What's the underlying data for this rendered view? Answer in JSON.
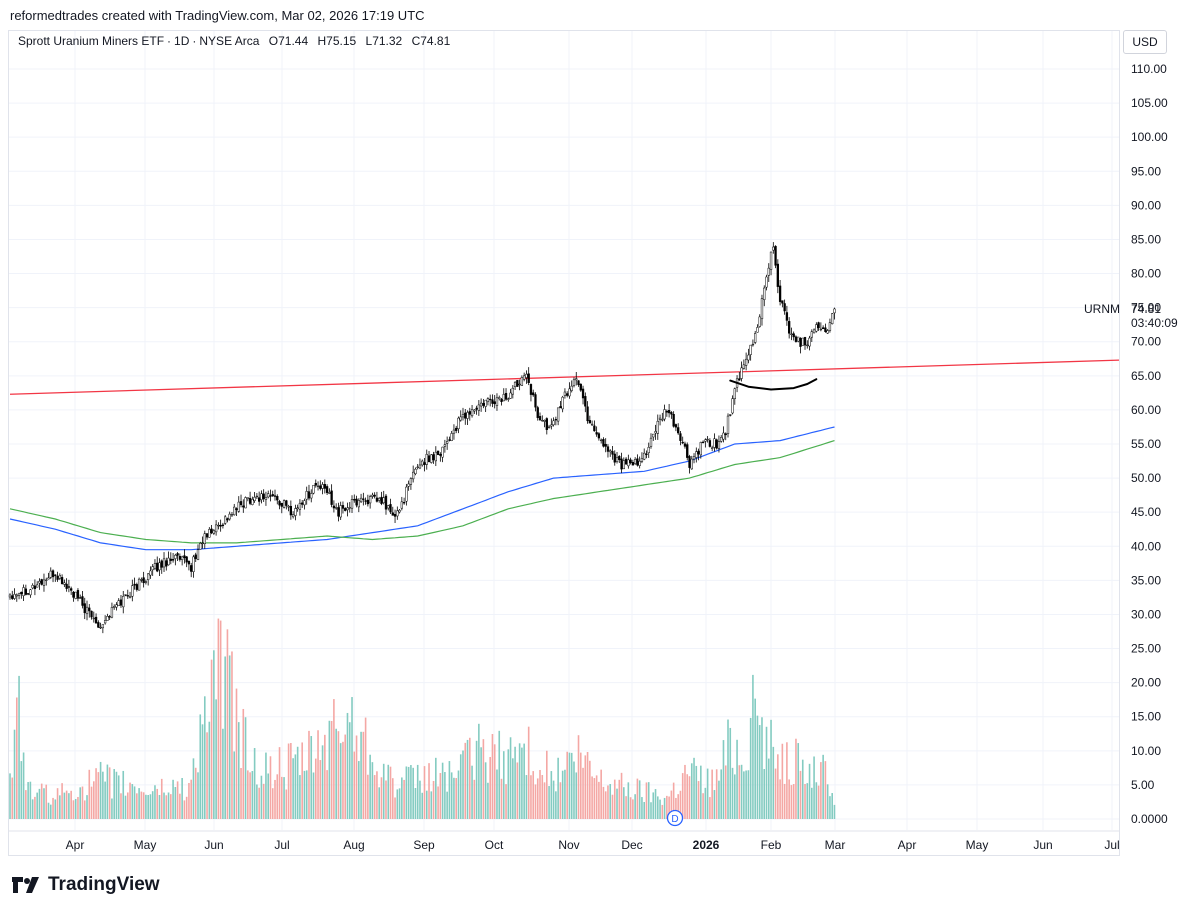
{
  "header": {
    "text": "reformedtrades created with TradingView.com, Mar 02, 2026 17:19 UTC"
  },
  "legend": {
    "name": "Sprott Uranium Miners ETF",
    "interval": "1D",
    "exchange": "NYSE Arca",
    "open": "O71.44",
    "high": "H75.15",
    "low": "L71.32",
    "close": "C74.81"
  },
  "currency_button": "USD",
  "last_price": {
    "ticker": "URNM",
    "price": "74.81",
    "countdown": "03:40:09"
  },
  "footer": {
    "brand": "TradingView"
  },
  "volume_marker": "D",
  "colors": {
    "up_candle": "#ffffff",
    "down_candle": "#000000",
    "vol_up": "#83cbc1",
    "vol_down": "#f4a7a4",
    "ma_blue": "#2962ff",
    "ma_green": "#4caf50",
    "trendline": "#f23645",
    "drawing": "#000000",
    "grid": "#f0f3fa"
  },
  "chart_data": {
    "type": "candlestick",
    "price_axis": {
      "ticks": [
        "110.00",
        "105.00",
        "100.00",
        "95.00",
        "90.00",
        "85.00",
        "80.00",
        "75.00",
        "70.00",
        "65.00",
        "60.00",
        "55.00",
        "50.00",
        "45.00",
        "40.00",
        "35.00",
        "30.00",
        "25.00",
        "20.00",
        "15.00",
        "10.00",
        "5.00",
        "0.0000"
      ],
      "price_range": [
        30,
        110
      ]
    },
    "time_axis": {
      "labels": [
        "Apr",
        "May",
        "Jun",
        "Jul",
        "Aug",
        "Sep",
        "Oct",
        "Nov",
        "Dec",
        "2026",
        "Feb",
        "Mar",
        "Apr",
        "May",
        "Jun",
        "Jul"
      ]
    },
    "close_series_anchors": [
      [
        0,
        33
      ],
      [
        10,
        34
      ],
      [
        20,
        36
      ],
      [
        28,
        33
      ],
      [
        35,
        30
      ],
      [
        40,
        28.5
      ],
      [
        46,
        31
      ],
      [
        55,
        34
      ],
      [
        65,
        37
      ],
      [
        72,
        38.5
      ],
      [
        80,
        37
      ],
      [
        85,
        41
      ],
      [
        95,
        44
      ],
      [
        105,
        47
      ],
      [
        115,
        47.5
      ],
      [
        125,
        45
      ],
      [
        135,
        49
      ],
      [
        140,
        48
      ],
      [
        145,
        45
      ],
      [
        155,
        47
      ],
      [
        165,
        46.5
      ],
      [
        170,
        44
      ],
      [
        180,
        52
      ],
      [
        190,
        54
      ],
      [
        200,
        59
      ],
      [
        210,
        61
      ],
      [
        220,
        62
      ],
      [
        228,
        66
      ],
      [
        232,
        60
      ],
      [
        238,
        57
      ],
      [
        245,
        62
      ],
      [
        250,
        65
      ],
      [
        255,
        59
      ],
      [
        262,
        55
      ],
      [
        270,
        52
      ],
      [
        278,
        52
      ],
      [
        285,
        57
      ],
      [
        290,
        60
      ],
      [
        296,
        56
      ],
      [
        300,
        52
      ],
      [
        306,
        55
      ],
      [
        312,
        55
      ],
      [
        316,
        57
      ],
      [
        320,
        63
      ],
      [
        325,
        67
      ],
      [
        330,
        72
      ],
      [
        334,
        80
      ],
      [
        337,
        84
      ],
      [
        340,
        76
      ],
      [
        344,
        72
      ],
      [
        348,
        70
      ],
      [
        352,
        70
      ],
      [
        356,
        73
      ],
      [
        360,
        71
      ],
      [
        364,
        74.81
      ]
    ],
    "volume_anchors_millions": [
      [
        0,
        7
      ],
      [
        4,
        19
      ],
      [
        8,
        5
      ],
      [
        20,
        4
      ],
      [
        40,
        7
      ],
      [
        60,
        5
      ],
      [
        80,
        6
      ],
      [
        85,
        18
      ],
      [
        95,
        28
      ],
      [
        100,
        17
      ],
      [
        110,
        8
      ],
      [
        130,
        10
      ],
      [
        150,
        18
      ],
      [
        170,
        6
      ],
      [
        190,
        8
      ],
      [
        200,
        9
      ],
      [
        205,
        12
      ],
      [
        215,
        11
      ],
      [
        230,
        12
      ],
      [
        240,
        7
      ],
      [
        250,
        11
      ],
      [
        260,
        7
      ],
      [
        270,
        6
      ],
      [
        280,
        5
      ],
      [
        290,
        4
      ],
      [
        300,
        9
      ],
      [
        306,
        7
      ],
      [
        312,
        7
      ],
      [
        318,
        14
      ],
      [
        323,
        12
      ],
      [
        327,
        17
      ],
      [
        330,
        20
      ],
      [
        334,
        13
      ],
      [
        340,
        12
      ],
      [
        350,
        9
      ],
      [
        360,
        8
      ],
      [
        364,
        4
      ]
    ],
    "moving_averages": [
      {
        "color": "blue",
        "anchors": [
          [
            0,
            44
          ],
          [
            20,
            42.5
          ],
          [
            40,
            40.5
          ],
          [
            60,
            39.5
          ],
          [
            80,
            39.5
          ],
          [
            100,
            40
          ],
          [
            120,
            40.5
          ],
          [
            140,
            41
          ],
          [
            160,
            42
          ],
          [
            180,
            43
          ],
          [
            200,
            45.5
          ],
          [
            220,
            48
          ],
          [
            240,
            50
          ],
          [
            260,
            50.5
          ],
          [
            280,
            51
          ],
          [
            300,
            52.5
          ],
          [
            320,
            55
          ],
          [
            340,
            55.5
          ],
          [
            364,
            57.5
          ]
        ]
      },
      {
        "color": "green",
        "anchors": [
          [
            0,
            45.5
          ],
          [
            20,
            44
          ],
          [
            40,
            42
          ],
          [
            60,
            41
          ],
          [
            80,
            40.5
          ],
          [
            100,
            40.5
          ],
          [
            120,
            41
          ],
          [
            140,
            41.5
          ],
          [
            160,
            41
          ],
          [
            180,
            41.5
          ],
          [
            200,
            43
          ],
          [
            220,
            45.5
          ],
          [
            240,
            47
          ],
          [
            260,
            48
          ],
          [
            280,
            49
          ],
          [
            300,
            50
          ],
          [
            320,
            52
          ],
          [
            340,
            53
          ],
          [
            364,
            55.5
          ]
        ]
      }
    ],
    "trendline": {
      "from": [
        0,
        62.3
      ],
      "to": [
        480,
        67.2
      ]
    },
    "support_arc": [
      [
        318,
        64.3
      ],
      [
        326,
        63.4
      ],
      [
        336,
        63
      ],
      [
        346,
        63.2
      ],
      [
        352,
        63.8
      ],
      [
        356,
        64.5
      ]
    ]
  }
}
